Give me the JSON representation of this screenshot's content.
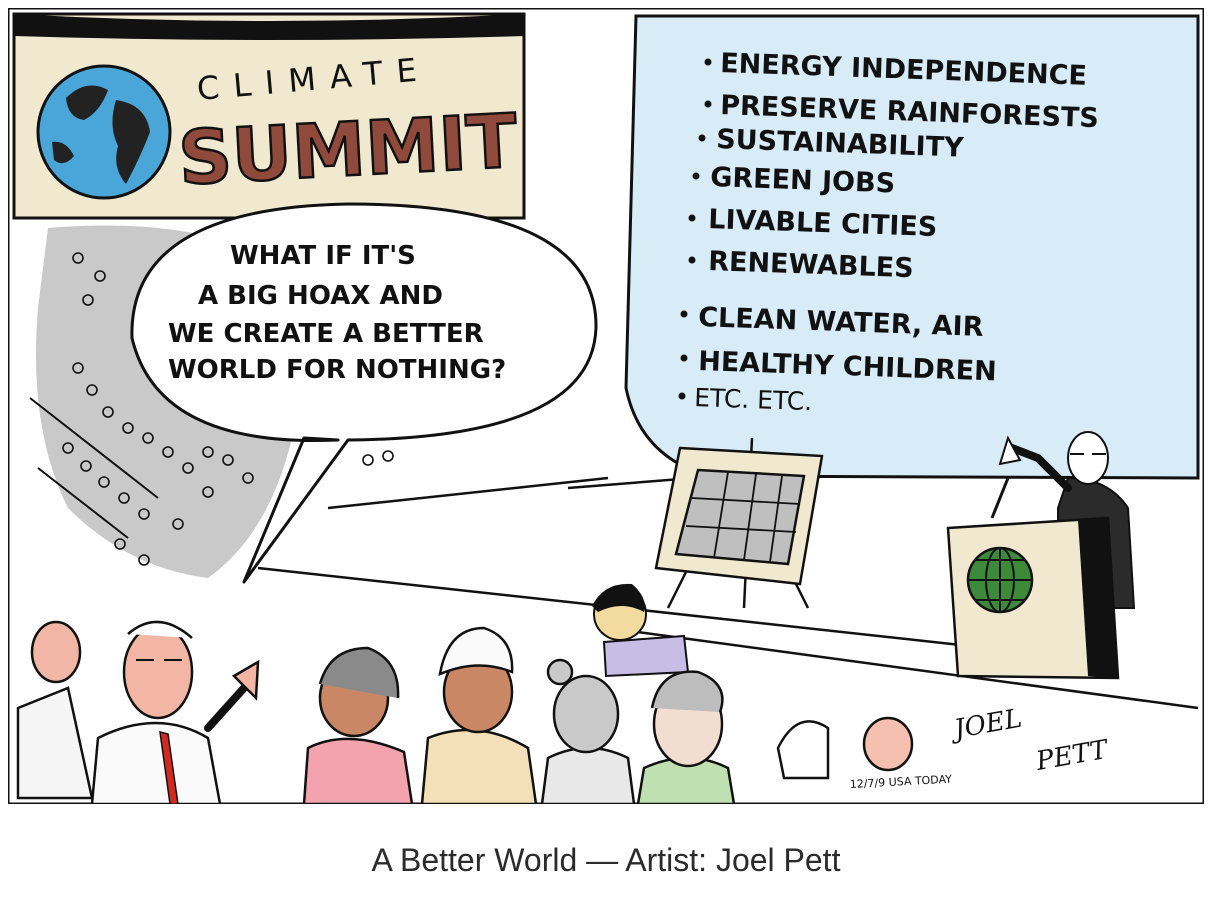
{
  "banner": {
    "top_word": "CLIMATE",
    "main_word": "SUMMIT"
  },
  "speech_bubble": {
    "lines": [
      "WHAT IF IT'S",
      "A BIG HOAX AND",
      "WE CREATE A BETTER",
      "WORLD FOR NOTHING?"
    ]
  },
  "screen_list": {
    "items": [
      "ENERGY INDEPENDENCE",
      "PRESERVE RAINFORESTS",
      "SUSTAINABILITY",
      "GREEN JOBS",
      "LIVABLE CITIES",
      "RENEWABLES",
      "CLEAN WATER, AIR",
      "HEALTHY CHILDREN",
      "ETC. ETC."
    ]
  },
  "signature": {
    "artist_first": "JOEL",
    "artist_last": "PETT",
    "date_source": "12/7/9 USA TODAY"
  },
  "caption": {
    "text": "A Better World  —  Artist: Joel Pett"
  },
  "colors": {
    "banner_bg": "#f1e9cf",
    "summit_red": "#8f4a3c",
    "globe_blue": "#4aa6d8",
    "screen_blue": "#d8ecf8",
    "podium_globe_green": "#3d8a3a",
    "crowd_gray": "#c9c9c9",
    "tie_red": "#d32a1f",
    "shirt_pink": "#f2a3ad"
  }
}
